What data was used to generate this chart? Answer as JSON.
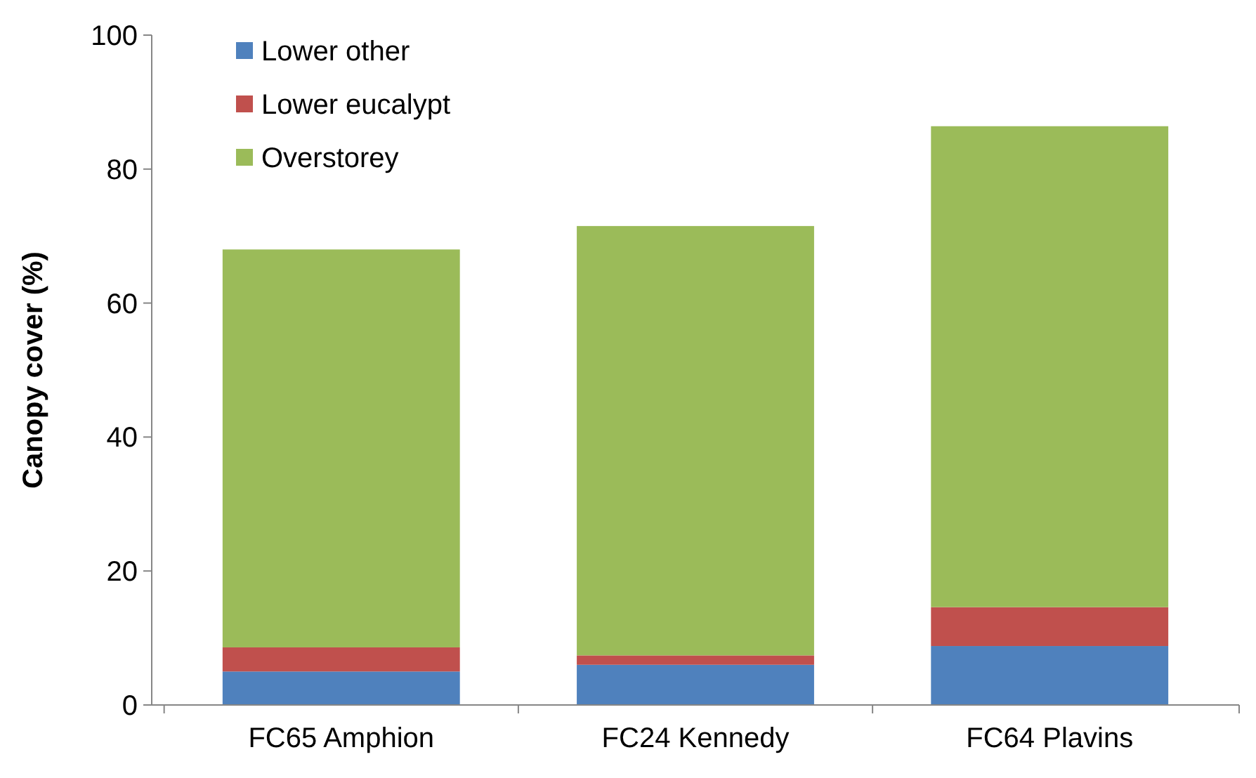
{
  "chart_data": {
    "type": "bar",
    "stacked": true,
    "ylabel": "Canopy cover (%)",
    "categories": [
      "FC65 Amphion",
      "FC24 Kennedy",
      "FC64 Plavins"
    ],
    "series": [
      {
        "name": "Lower other",
        "color": "#4f81bd",
        "values": [
          5,
          6,
          8.8
        ]
      },
      {
        "name": "Lower eucalypt",
        "color": "#c0504d",
        "values": [
          3.6,
          1.4,
          5.8
        ]
      },
      {
        "name": "Overstorey",
        "color": "#9bbb59",
        "values": [
          59.4,
          64.1,
          71.8
        ]
      }
    ],
    "ylim": [
      0,
      100
    ],
    "yticks": [
      0,
      20,
      40,
      60,
      80,
      100
    ],
    "grid": false,
    "legend": "top left"
  }
}
